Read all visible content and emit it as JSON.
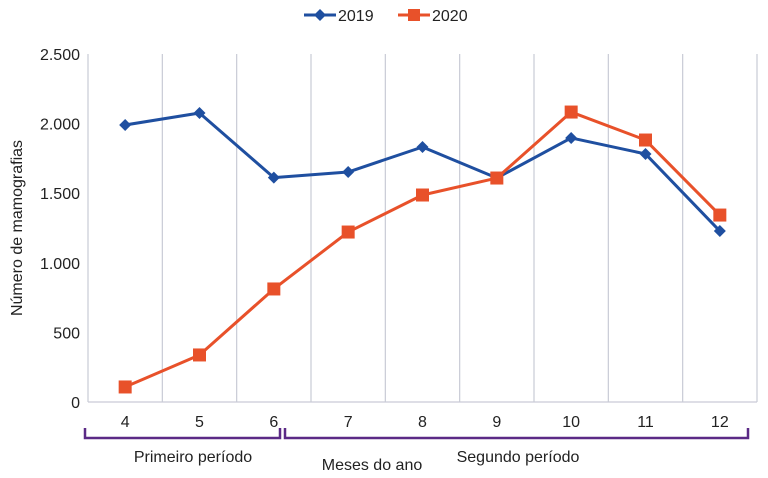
{
  "chart_data": {
    "type": "line",
    "title": "",
    "xlabel": "Meses do ano",
    "ylabel": "Número de mamografias",
    "categories": [
      "4",
      "5",
      "6",
      "7",
      "8",
      "9",
      "10",
      "11",
      "12"
    ],
    "ylim": [
      0,
      2500
    ],
    "yticks": [
      0,
      500,
      1000,
      1500,
      2000,
      2500
    ],
    "ytick_labels": [
      "0",
      "500",
      "1.000",
      "1.500",
      "2.000",
      "2.500"
    ],
    "grid": "vertical",
    "legend_position": "top-center",
    "series": [
      {
        "name": "2019",
        "color": "#1f4fa0",
        "marker": "diamond",
        "values": [
          1990,
          2076,
          1612,
          1652,
          1832,
          1609,
          1897,
          1782,
          1228
        ]
      },
      {
        "name": "2020",
        "color": "#e8512a",
        "marker": "square",
        "values": [
          108,
          338,
          812,
          1221,
          1487,
          1609,
          2083,
          1882,
          1343
        ]
      }
    ],
    "periods": [
      {
        "label": "Primeiro período",
        "from": "4",
        "to": "6"
      },
      {
        "label": "Segundo período",
        "from": "7",
        "to": "12"
      }
    ],
    "bracket_color": "#5b2a86"
  }
}
